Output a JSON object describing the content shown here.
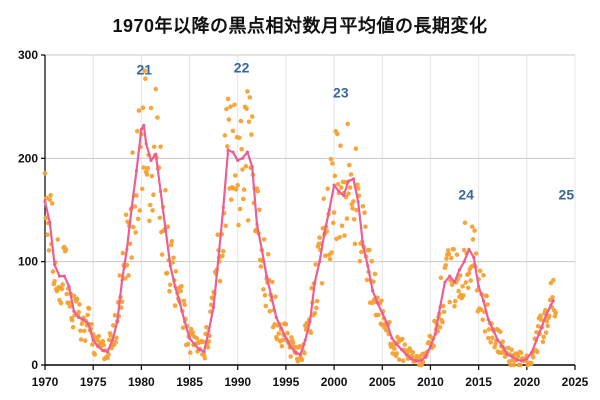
{
  "chart": {
    "title": "1970年以降の黒点相対数月平均値の長期変化"
  },
  "chart_data": {
    "type": "scatter",
    "title": "1970年以降の黒点相対数月平均値の長期変化",
    "xlabel": "",
    "ylabel": "",
    "xlim": [
      1970,
      2025
    ],
    "ylim": [
      0,
      300
    ],
    "x_ticks": [
      1970,
      1975,
      1980,
      1985,
      1990,
      1995,
      2000,
      2005,
      2010,
      2015,
      2020,
      2025
    ],
    "y_ticks": [
      0,
      100,
      200,
      300
    ],
    "grid": true,
    "legend": "none",
    "colors": {
      "scatter": "#F5A133",
      "line": "#EC5F94",
      "cycle_label": "#36689A",
      "grid_h": "#c9c9c9",
      "grid_v": "#e4e4e4",
      "axis": "#000000",
      "tick_label": "#111111"
    },
    "cycle_labels": [
      {
        "text": "21",
        "x": 1980.3,
        "y": 281
      },
      {
        "text": "22",
        "x": 1990.4,
        "y": 283
      },
      {
        "text": "23",
        "x": 2000.7,
        "y": 259
      },
      {
        "text": "24",
        "x": 2013.7,
        "y": 160
      },
      {
        "text": "25",
        "x": 2024.1,
        "y": 160
      }
    ],
    "series": [
      {
        "name": "黒点相対数 月平均値",
        "type": "scatter",
        "color": "#F5A133",
        "derived_from": "smoothed_line",
        "points_per_year": 12,
        "jitter_base": 7,
        "jitter_ratio": 0.3,
        "seed": 20,
        "x_start": 1970.0,
        "x_end": 2023.0
      },
      {
        "name": "平滑化曲線",
        "type": "line",
        "color": "#EC5F94",
        "points": [
          [
            1970,
            158
          ],
          [
            1970.5,
            138
          ],
          [
            1971,
            97
          ],
          [
            1971.5,
            86
          ],
          [
            1972,
            86
          ],
          [
            1972.5,
            76
          ],
          [
            1973,
            52
          ],
          [
            1973.5,
            46
          ],
          [
            1974,
            44
          ],
          [
            1974.5,
            40
          ],
          [
            1975,
            24
          ],
          [
            1975.5,
            18
          ],
          [
            1976,
            14
          ],
          [
            1976.5,
            13
          ],
          [
            1977,
            24
          ],
          [
            1977.5,
            42
          ],
          [
            1978,
            82
          ],
          [
            1978.5,
            112
          ],
          [
            1979,
            152
          ],
          [
            1979.5,
            188
          ],
          [
            1980,
            228
          ],
          [
            1980.25,
            232
          ],
          [
            1980.5,
            214
          ],
          [
            1981,
            198
          ],
          [
            1981.5,
            204
          ],
          [
            1982,
            168
          ],
          [
            1982.5,
            132
          ],
          [
            1983,
            96
          ],
          [
            1983.5,
            76
          ],
          [
            1984,
            60
          ],
          [
            1984.5,
            42
          ],
          [
            1985,
            26
          ],
          [
            1985.5,
            20
          ],
          [
            1986,
            15
          ],
          [
            1986.5,
            13
          ],
          [
            1987,
            33
          ],
          [
            1987.5,
            56
          ],
          [
            1988,
            104
          ],
          [
            1988.5,
            152
          ],
          [
            1989,
            208
          ],
          [
            1989.5,
            206
          ],
          [
            1990,
            198
          ],
          [
            1990.5,
            200
          ],
          [
            1991,
            206
          ],
          [
            1991.5,
            192
          ],
          [
            1992,
            136
          ],
          [
            1992.5,
            112
          ],
          [
            1993,
            86
          ],
          [
            1993.5,
            66
          ],
          [
            1994,
            46
          ],
          [
            1994.5,
            36
          ],
          [
            1995,
            26
          ],
          [
            1995.5,
            18
          ],
          [
            1996,
            12
          ],
          [
            1996.5,
            10
          ],
          [
            1997,
            24
          ],
          [
            1997.5,
            42
          ],
          [
            1998,
            80
          ],
          [
            1998.5,
            100
          ],
          [
            1999,
            128
          ],
          [
            1999.5,
            150
          ],
          [
            2000,
            174
          ],
          [
            2000.5,
            168
          ],
          [
            2001,
            164
          ],
          [
            2001.5,
            178
          ],
          [
            2002,
            180
          ],
          [
            2002.5,
            158
          ],
          [
            2003,
            116
          ],
          [
            2003.5,
            96
          ],
          [
            2004,
            72
          ],
          [
            2004.5,
            60
          ],
          [
            2005,
            50
          ],
          [
            2005.5,
            40
          ],
          [
            2006,
            26
          ],
          [
            2006.5,
            20
          ],
          [
            2007,
            15
          ],
          [
            2007.5,
            10
          ],
          [
            2008,
            6
          ],
          [
            2008.5,
            4
          ],
          [
            2009,
            4
          ],
          [
            2009.5,
            8
          ],
          [
            2010,
            18
          ],
          [
            2010.5,
            30
          ],
          [
            2011,
            56
          ],
          [
            2011.5,
            80
          ],
          [
            2012,
            86
          ],
          [
            2012.5,
            80
          ],
          [
            2013,
            92
          ],
          [
            2013.5,
            100
          ],
          [
            2014,
            112
          ],
          [
            2014.5,
            104
          ],
          [
            2015,
            76
          ],
          [
            2015.5,
            62
          ],
          [
            2016,
            44
          ],
          [
            2016.5,
            34
          ],
          [
            2017,
            24
          ],
          [
            2017.5,
            18
          ],
          [
            2018,
            10
          ],
          [
            2018.5,
            8
          ],
          [
            2019,
            5
          ],
          [
            2019.5,
            4
          ],
          [
            2020,
            6
          ],
          [
            2020.5,
            12
          ],
          [
            2021,
            24
          ],
          [
            2021.5,
            36
          ],
          [
            2022,
            48
          ],
          [
            2022.5,
            58
          ],
          [
            2022.75,
            62
          ]
        ]
      }
    ]
  }
}
